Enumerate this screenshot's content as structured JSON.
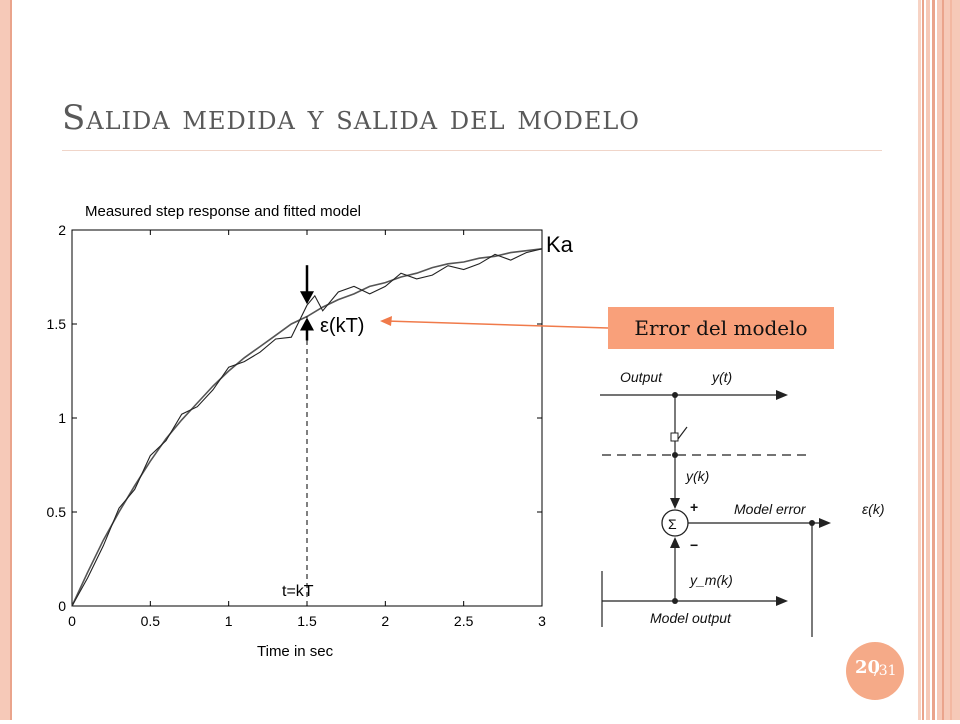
{
  "slide": {
    "title": "Salida medida y salida del modelo",
    "callout_label": "Error del modelo",
    "page_current": "20",
    "page_total": "/31"
  },
  "colors": {
    "accent": "#f9a07a",
    "frame": "#f6c9b8",
    "arrow": "#f07a4a"
  },
  "chart_data": {
    "type": "line",
    "title": "Measured step response  and fitted model",
    "xlabel": "Time in sec",
    "ylabel": "",
    "xlim": [
      0,
      3
    ],
    "ylim": [
      0,
      2
    ],
    "x_ticks": [
      "0",
      "0.5",
      "1",
      "1.5",
      "2",
      "2.5",
      "3"
    ],
    "y_ticks": [
      "0",
      "0.5",
      "1",
      "1.5",
      "2"
    ],
    "grid": false,
    "series": [
      {
        "x": [
          0,
          0.1,
          0.2,
          0.3,
          0.4,
          0.5,
          0.6,
          0.7,
          0.8,
          0.9,
          1.0,
          1.1,
          1.2,
          1.3,
          1.4,
          1.5,
          1.6,
          1.7,
          1.8,
          1.9,
          2.0,
          2.1,
          2.2,
          2.3,
          2.4,
          2.5,
          2.6,
          2.7,
          2.8,
          2.9,
          3.0
        ],
        "y": [
          0,
          0.18,
          0.35,
          0.5,
          0.64,
          0.77,
          0.89,
          0.99,
          1.08,
          1.17,
          1.25,
          1.32,
          1.38,
          1.44,
          1.5,
          1.54,
          1.59,
          1.63,
          1.66,
          1.7,
          1.72,
          1.75,
          1.77,
          1.8,
          1.82,
          1.83,
          1.85,
          1.86,
          1.88,
          1.89,
          1.9
        ]
      },
      {
        "x": [
          0,
          0.1,
          0.2,
          0.3,
          0.4,
          0.5,
          0.6,
          0.7,
          0.8,
          0.9,
          1.0,
          1.1,
          1.2,
          1.3,
          1.4,
          1.5,
          1.55,
          1.6,
          1.7,
          1.8,
          1.9,
          2.0,
          2.1,
          2.2,
          2.3,
          2.4,
          2.5,
          2.6,
          2.7,
          2.8,
          2.9,
          3.0
        ],
        "y": [
          0,
          0.15,
          0.32,
          0.52,
          0.62,
          0.8,
          0.88,
          1.02,
          1.06,
          1.15,
          1.27,
          1.3,
          1.35,
          1.42,
          1.43,
          1.6,
          1.65,
          1.57,
          1.67,
          1.7,
          1.66,
          1.7,
          1.77,
          1.74,
          1.76,
          1.81,
          1.79,
          1.82,
          1.87,
          1.84,
          1.88,
          1.9
        ]
      }
    ],
    "annotations": {
      "ka": "Ka",
      "error": "ε(kT)",
      "time": "t=kT",
      "time_x": 1.5
    }
  },
  "diagram": {
    "output_label": "Output",
    "output_signal": "y(t)",
    "sampled_signal": "y(k)",
    "sum_symbol": "Σ",
    "plus": "+",
    "minus": "−",
    "model_error_label": "Model error",
    "model_error_signal": "ε(k)",
    "model_signal": "y_m(k)",
    "model_output_label": "Model output"
  }
}
